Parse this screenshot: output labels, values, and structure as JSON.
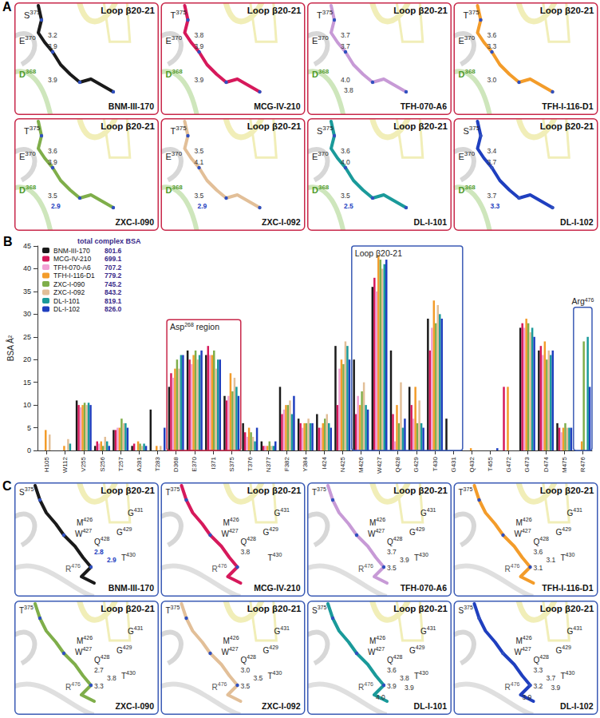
{
  "panel_A": {
    "label": "A",
    "loop_label": "Loop β20-21",
    "border_color": "#c8284a",
    "boxes": [
      {
        "ligand": "BNM-III-170",
        "color": "#1a1a1a",
        "residues": [
          "S375",
          "E370",
          "D368"
        ],
        "distances": [
          {
            "text": "3.2",
            "near": "E370"
          },
          {
            "text": "3.9",
            "near": "E370"
          },
          {
            "text": "3.9",
            "near": "D368"
          }
        ]
      },
      {
        "ligand": "MCG-IV-210",
        "color": "#d6195b",
        "residues": [
          "T375",
          "E370",
          "D368"
        ],
        "distances": [
          {
            "text": "3.8",
            "near": "E370"
          },
          {
            "text": "3.9",
            "near": "E370"
          },
          {
            "text": "3.9",
            "near": "D368"
          }
        ]
      },
      {
        "ligand": "TFH-070-A6",
        "color": "#c79ad6",
        "residues": [
          "T375",
          "E370",
          "D368"
        ],
        "distances": [
          {
            "text": "3.7",
            "near": "E370"
          },
          {
            "text": "3.7",
            "near": "E370"
          },
          {
            "text": "4.0",
            "near": "D368"
          },
          {
            "text": "3.8",
            "near": "D368"
          }
        ]
      },
      {
        "ligand": "TFH-I-116-D1",
        "color": "#f39c2a",
        "residues": [
          "T375",
          "E370",
          "D368"
        ],
        "distances": [
          {
            "text": "3.6",
            "near": "E370"
          },
          {
            "text": "3.3",
            "near": "E370"
          },
          {
            "text": "3.0",
            "near": "D368"
          }
        ]
      },
      {
        "ligand": "ZXC-I-090",
        "color": "#7fae4a",
        "residues": [
          "T375",
          "E370",
          "D368"
        ],
        "distances": [
          {
            "text": "3.6",
            "near": "E370"
          },
          {
            "text": "3.9",
            "near": "E370"
          },
          {
            "text": "3.5",
            "near": "D368"
          },
          {
            "text": "2.9",
            "near": "D368",
            "color": "#1f3fbf"
          }
        ]
      },
      {
        "ligand": "ZXC-I-092",
        "color": "#e2bf98",
        "residues": [
          "T375",
          "E370",
          "D368"
        ],
        "distances": [
          {
            "text": "3.5",
            "near": "E370"
          },
          {
            "text": "4.1",
            "near": "E370"
          },
          {
            "text": "3.5",
            "near": "D368"
          },
          {
            "text": "2.9",
            "near": "D368",
            "color": "#1f3fbf"
          }
        ]
      },
      {
        "ligand": "DL-I-101",
        "color": "#1a9a9a",
        "residues": [
          "S375",
          "E370",
          "D368"
        ],
        "distances": [
          {
            "text": "3.6",
            "near": "E370"
          },
          {
            "text": "4.0",
            "near": "E370"
          },
          {
            "text": "3.5",
            "near": "D368"
          },
          {
            "text": "2.5",
            "near": "D368",
            "color": "#1f3fbf"
          }
        ]
      },
      {
        "ligand": "DL-I-102",
        "color": "#1f3fbf",
        "residues": [
          "S375",
          "E370",
          "D368"
        ],
        "distances": [
          {
            "text": "3.4",
            "near": "E370"
          },
          {
            "text": "3.7",
            "near": "E370"
          },
          {
            "text": "3.7",
            "near": "D368"
          },
          {
            "text": "3.3",
            "near": "D368",
            "color": "#1f3fbf"
          }
        ]
      }
    ]
  },
  "chart_data": {
    "label": "B",
    "type": "bar",
    "y_label": "BSA Å²",
    "categories": [
      "H105",
      "W112",
      "V255",
      "S256",
      "T257",
      "A281",
      "T283",
      "D368",
      "E370",
      "I371",
      "S375",
      "T376",
      "N377",
      "F382",
      "Y384",
      "I424",
      "N425",
      "M426",
      "W427",
      "Q428",
      "G429",
      "T430",
      "G431",
      "Q432",
      "T455",
      "G472",
      "G473",
      "D474",
      "M475",
      "R476"
    ],
    "ylim": [
      0,
      45
    ],
    "yticks": [
      0,
      5,
      10,
      15,
      20,
      25,
      30,
      35,
      40,
      45
    ],
    "grid": false,
    "legend": "top-left",
    "legend_title": "total complex BSA",
    "series": [
      {
        "name": "BNM-III-170",
        "color": "#1a1a1a",
        "total_bsa": "801.6",
        "values": [
          0,
          0,
          11,
          1,
          4.5,
          1,
          9,
          14,
          22,
          21,
          12,
          6,
          2,
          14,
          7,
          8,
          23,
          20,
          36,
          22,
          14,
          29,
          7,
          0,
          0,
          0,
          27,
          22,
          6,
          0
        ]
      },
      {
        "name": "MCG-IV-210",
        "color": "#d6195b",
        "total_bsa": "699.1",
        "values": [
          0,
          0,
          10,
          2,
          4.5,
          1.5,
          0,
          17,
          20,
          23,
          11,
          4,
          1,
          8,
          6,
          5,
          10,
          8,
          38,
          8,
          10,
          22,
          0,
          0,
          0,
          14,
          28,
          23,
          5,
          0
        ]
      },
      {
        "name": "TFH-070-A6",
        "color": "#f2a0d4",
        "total_bsa": "707.2",
        "values": [
          0,
          0,
          9.5,
          1.5,
          5,
          0,
          0,
          16,
          19,
          21,
          12,
          3,
          1,
          9,
          5,
          5,
          18,
          12,
          35,
          2,
          7,
          27,
          0,
          0,
          0,
          0,
          27,
          21,
          4,
          0
        ]
      },
      {
        "name": "TFH-I-116-D1",
        "color": "#f39c2a",
        "total_bsa": "779.2",
        "values": [
          4.5,
          1,
          10,
          2,
          5,
          2,
          1,
          18,
          21,
          21,
          17,
          5,
          1,
          10,
          6,
          6,
          20,
          10,
          43,
          10,
          14,
          33,
          0,
          0.5,
          0,
          14,
          29,
          24,
          5,
          2
        ]
      },
      {
        "name": "ZXC-I-090",
        "color": "#7fae4a",
        "total_bsa": "745.2",
        "values": [
          0,
          0,
          10.5,
          1,
          7,
          1.5,
          0,
          20,
          22,
          22,
          13,
          4,
          2,
          10,
          6,
          7,
          19,
          13,
          42,
          6,
          6,
          28,
          0,
          0,
          0,
          0,
          28,
          20,
          6,
          24
        ]
      },
      {
        "name": "ZXC-I-092",
        "color": "#e2bf98",
        "total_bsa": "843.2",
        "values": [
          3.5,
          2.5,
          10,
          3,
          6,
          1,
          1,
          18,
          20,
          18,
          16,
          3,
          1,
          11,
          7,
          8,
          24,
          15,
          40,
          15,
          11,
          32,
          0,
          0,
          0,
          0,
          26,
          22,
          5,
          0
        ]
      },
      {
        "name": "DL-I-101",
        "color": "#1a9a9a",
        "total_bsa": "819.1",
        "values": [
          0,
          1.5,
          10.5,
          2,
          6,
          1.5,
          0,
          21,
          21,
          20,
          14,
          2,
          1,
          8,
          6,
          6,
          23,
          10,
          41,
          5,
          6,
          30,
          0,
          0,
          0,
          0,
          27,
          21,
          5,
          25
        ]
      },
      {
        "name": "DL-I-102",
        "color": "#1f3fbf",
        "total_bsa": "826.0",
        "values": [
          0,
          0,
          10,
          1,
          5,
          1,
          5,
          21,
          22,
          20,
          12,
          5,
          2,
          12,
          6,
          5,
          20,
          9,
          42,
          7,
          5,
          29,
          0,
          0,
          0.5,
          0,
          25,
          22,
          5,
          14
        ]
      }
    ],
    "annotations": [
      {
        "text": "Asp268 region",
        "from": "D368",
        "to": "S375",
        "color": "#c8284a"
      },
      {
        "text": "Loop β20-21",
        "from": "M426",
        "to": "G431",
        "color": "#3b5bb5"
      },
      {
        "text": "Arg476",
        "from": "R476",
        "to": "R476",
        "color": "#3b5bb5"
      }
    ]
  },
  "panel_C": {
    "label": "C",
    "loop_label": "Loop β20-21",
    "border_color": "#3b5bb5",
    "boxes": [
      {
        "ligand": "BNM-III-170",
        "color": "#1a1a1a",
        "residues": [
          "S375",
          "M426",
          "W427",
          "Q428",
          "G429",
          "T430",
          "G431",
          "R476"
        ],
        "distances": [
          {
            "text": "2.8",
            "color": "#1f3fbf"
          },
          {
            "text": "2.9",
            "color": "#1f3fbf"
          }
        ]
      },
      {
        "ligand": "MCG-IV-210",
        "color": "#d6195b",
        "residues": [
          "T375",
          "M426",
          "W427",
          "Q428",
          "G429",
          "T430",
          "G431",
          "R476"
        ],
        "distances": [
          {
            "text": "3.8"
          }
        ]
      },
      {
        "ligand": "TFH-070-A6",
        "color": "#c79ad6",
        "residues": [
          "T375",
          "M426",
          "W427",
          "Q428",
          "G429",
          "T430",
          "G431",
          "R476"
        ],
        "distances": [
          {
            "text": "3.7"
          },
          {
            "text": "3.9"
          },
          {
            "text": "3.5"
          }
        ]
      },
      {
        "ligand": "TFH-I-116-D1",
        "color": "#f39c2a",
        "residues": [
          "T375",
          "M426",
          "W427",
          "Q428",
          "G429",
          "T430",
          "G431",
          "R476"
        ],
        "distances": [
          {
            "text": "3.6"
          },
          {
            "text": "3.1"
          },
          {
            "text": "3.1"
          }
        ]
      },
      {
        "ligand": "ZXC-I-090",
        "color": "#7fae4a",
        "residues": [
          "T375",
          "M426",
          "W427",
          "Q428",
          "G429",
          "T430",
          "G431",
          "R476"
        ],
        "distances": [
          {
            "text": "2.7"
          },
          {
            "text": "3.8"
          },
          {
            "text": "3.3"
          }
        ]
      },
      {
        "ligand": "ZXC-I-092",
        "color": "#e2bf98",
        "residues": [
          "T375",
          "M426",
          "W427",
          "Q428",
          "G429",
          "T430",
          "G431",
          "R476"
        ],
        "distances": [
          {
            "text": "3.0"
          },
          {
            "text": "3.5"
          },
          {
            "text": "3.5"
          }
        ]
      },
      {
        "ligand": "DL-I-101",
        "color": "#1a9a9a",
        "residues": [
          "S375",
          "M426",
          "W427",
          "Q428",
          "G429",
          "T430",
          "G431",
          "R476"
        ],
        "distances": [
          {
            "text": "3.6"
          },
          {
            "text": "3.8"
          },
          {
            "text": "3.9"
          },
          {
            "text": "3.9"
          },
          {
            "text": "4.0"
          }
        ]
      },
      {
        "ligand": "DL-I-102",
        "color": "#1f3fbf",
        "residues": [
          "S375",
          "M426",
          "W427",
          "Q428",
          "G429",
          "T430",
          "G431",
          "R476"
        ],
        "distances": [
          {
            "text": "3.3"
          },
          {
            "text": "3.7"
          },
          {
            "text": "3.2"
          },
          {
            "text": "3.9"
          },
          {
            "text": "3.9"
          }
        ]
      }
    ]
  }
}
